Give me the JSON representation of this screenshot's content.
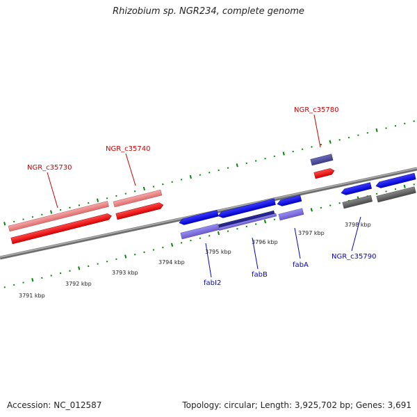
{
  "title": "Rhizobium sp. NGR234, complete genome",
  "accession": "Accession: NC_012587",
  "topology": "Topology: circular; Length: 3,925,702 bp; Genes: 3,691",
  "colors": {
    "forward_gene": "#ff0000",
    "forward_gene_light": "#f08080",
    "reverse_gene": "#0000ee",
    "reverse_gene_light": "#7777dd",
    "other_gene": "#555555",
    "ruler": "#008800",
    "backbone": "#888888"
  },
  "ruler_labels": [
    "3791 kbp",
    "3792 kbp",
    "3793 kbp",
    "3794 kbp",
    "3795 kbp",
    "3796 kbp",
    "3797 kbp",
    "3798 kbp"
  ],
  "gene_labels": {
    "ngr_c35730": "NGR_c35730",
    "ngr_c35740": "NGR_c35740",
    "ngr_c35780": "NGR_c35780",
    "ngr_c35790": "NGR_c35790",
    "fabi2": "fabI2",
    "fabb": "fabB",
    "faba": "fabA"
  }
}
